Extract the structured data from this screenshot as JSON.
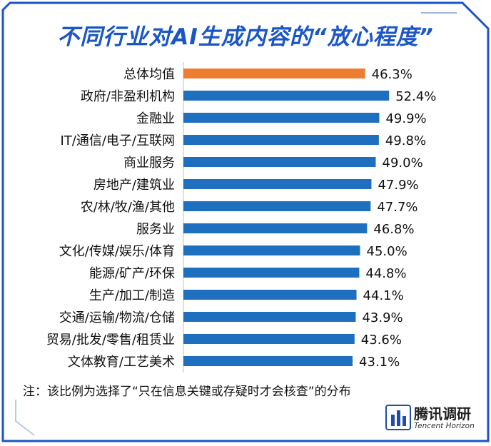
{
  "title": "不同行业对AI生成内容的“放心程度”",
  "note": "注：该比例为选择了“只在信息关键或存疑时才会核查”的分布",
  "logo": {
    "name": "腾讯调研",
    "sub": "Tencent Horizon"
  },
  "colors": {
    "highlight": "#ed7d31",
    "bar": "#1f6fc1",
    "title": "#1a56c6",
    "frame": "#1a56c6"
  },
  "chart_data": {
    "type": "bar",
    "orientation": "horizontal",
    "title": "不同行业对AI生成内容的“放心程度”",
    "categories": [
      "总体均值",
      "政府/非盈利机构",
      "金融业",
      "IT/通信/电子/互联网",
      "商业服务",
      "房地产/建筑业",
      "农/林/牧/渔/其他",
      "服务业",
      "文化/传媒/娱乐/体育",
      "能源/矿产/环保",
      "生产/加工/制造",
      "交通/运输/物流/仓储",
      "贸易/批发/零售/租赁业",
      "文体教育/工艺美术"
    ],
    "values": [
      46.3,
      52.4,
      49.9,
      49.8,
      49.0,
      47.9,
      47.7,
      46.8,
      45.0,
      44.8,
      44.1,
      43.9,
      43.6,
      43.1
    ],
    "labels": [
      "46.3%",
      "52.4%",
      "49.9%",
      "49.8%",
      "49.0%",
      "47.9%",
      "47.7%",
      "46.8%",
      "45.0%",
      "44.8%",
      "44.1%",
      "43.9%",
      "43.6%",
      "43.1%"
    ],
    "highlight_index": 0,
    "grid": false,
    "legend": "none"
  }
}
